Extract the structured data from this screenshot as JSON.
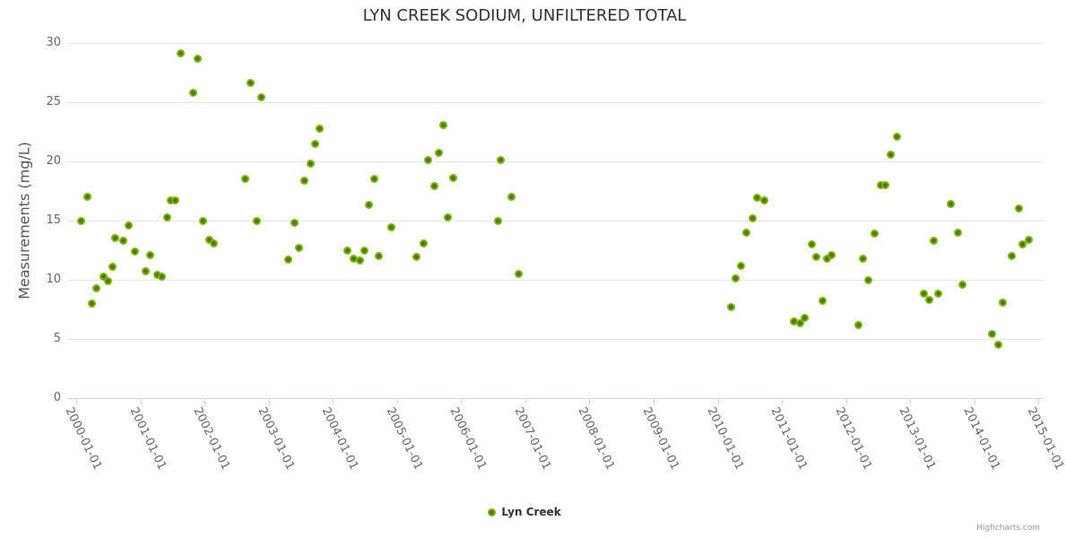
{
  "credits": "Highcharts.com",
  "legend": {
    "label": "Lyn Creek"
  },
  "colors": {
    "point_core": "#4a7a05",
    "point_ring": "#7cb500",
    "gridline": "#e6e6e6",
    "axis_line": "#ccd6eb",
    "title_text": "#333333",
    "axis_labels": "#666666",
    "credits_text": "#999999"
  },
  "chart_data": {
    "type": "scatter",
    "title": "LYN CREEK SODIUM, UNFILTERED TOTAL",
    "xlabel": "",
    "ylabel": "Measurements (mg/L)",
    "ylim": [
      0,
      30
    ],
    "xlim": [
      1999.85,
      2015.1
    ],
    "grid": "horizontal-only",
    "legend_position": "bottom-center",
    "y_ticks": [
      0,
      5,
      10,
      15,
      20,
      25,
      30
    ],
    "x_tick_labels": [
      "2000-01-01",
      "2001-01-01",
      "2002-01-01",
      "2003-01-01",
      "2004-01-01",
      "2005-01-01",
      "2006-01-01",
      "2007-01-01",
      "2008-01-01",
      "2009-01-01",
      "2010-01-01",
      "2011-01-01",
      "2012-01-01",
      "2013-01-01",
      "2014-01-01",
      "2015-01-01"
    ],
    "series": [
      {
        "name": "Lyn Creek",
        "data": [
          [
            2000.08,
            15.0
          ],
          [
            2000.17,
            17.0
          ],
          [
            2000.25,
            8.0
          ],
          [
            2000.31,
            9.3
          ],
          [
            2000.43,
            10.3
          ],
          [
            2000.5,
            9.9
          ],
          [
            2000.56,
            11.1
          ],
          [
            2000.61,
            13.5
          ],
          [
            2000.74,
            13.3
          ],
          [
            2000.82,
            14.6
          ],
          [
            2000.91,
            12.4
          ],
          [
            2001.09,
            10.7
          ],
          [
            2001.16,
            12.1
          ],
          [
            2001.26,
            10.4
          ],
          [
            2001.34,
            10.3
          ],
          [
            2001.42,
            15.3
          ],
          [
            2001.48,
            16.7
          ],
          [
            2001.55,
            16.7
          ],
          [
            2001.63,
            29.1
          ],
          [
            2001.83,
            25.8
          ],
          [
            2001.89,
            28.7
          ],
          [
            2001.98,
            15.0
          ],
          [
            2002.07,
            13.4
          ],
          [
            2002.15,
            13.1
          ],
          [
            2002.63,
            18.5
          ],
          [
            2002.72,
            26.6
          ],
          [
            2002.82,
            15.0
          ],
          [
            2002.89,
            25.4
          ],
          [
            2003.3,
            11.7
          ],
          [
            2003.4,
            14.8
          ],
          [
            2003.47,
            12.7
          ],
          [
            2003.56,
            18.4
          ],
          [
            2003.66,
            19.8
          ],
          [
            2003.72,
            21.5
          ],
          [
            2003.8,
            22.8
          ],
          [
            2004.23,
            12.5
          ],
          [
            2004.33,
            11.8
          ],
          [
            2004.42,
            11.6
          ],
          [
            2004.49,
            12.5
          ],
          [
            2004.57,
            16.3
          ],
          [
            2004.65,
            18.5
          ],
          [
            2004.72,
            12.0
          ],
          [
            2004.91,
            14.4
          ],
          [
            2005.3,
            11.9
          ],
          [
            2005.41,
            13.1
          ],
          [
            2005.48,
            20.1
          ],
          [
            2005.58,
            17.9
          ],
          [
            2005.65,
            20.7
          ],
          [
            2005.73,
            23.1
          ],
          [
            2005.8,
            15.3
          ],
          [
            2005.88,
            18.6
          ],
          [
            2006.57,
            15.0
          ],
          [
            2006.62,
            20.1
          ],
          [
            2006.79,
            17.0
          ],
          [
            2006.9,
            10.5
          ],
          [
            2010.21,
            7.7
          ],
          [
            2010.28,
            10.1
          ],
          [
            2010.36,
            11.2
          ],
          [
            2010.45,
            14.0
          ],
          [
            2010.54,
            15.2
          ],
          [
            2010.62,
            16.9
          ],
          [
            2010.72,
            16.7
          ],
          [
            2011.19,
            6.5
          ],
          [
            2011.28,
            6.3
          ],
          [
            2011.36,
            6.8
          ],
          [
            2011.47,
            13.0
          ],
          [
            2011.54,
            11.9
          ],
          [
            2011.63,
            8.2
          ],
          [
            2011.7,
            11.8
          ],
          [
            2011.77,
            12.1
          ],
          [
            2012.2,
            6.2
          ],
          [
            2012.27,
            11.8
          ],
          [
            2012.35,
            10.0
          ],
          [
            2012.45,
            13.9
          ],
          [
            2012.54,
            18.0
          ],
          [
            2012.62,
            18.0
          ],
          [
            2012.7,
            20.6
          ],
          [
            2012.79,
            22.1
          ],
          [
            2013.22,
            8.8
          ],
          [
            2013.3,
            8.3
          ],
          [
            2013.37,
            13.3
          ],
          [
            2013.44,
            8.8
          ],
          [
            2013.64,
            16.4
          ],
          [
            2013.74,
            14.0
          ],
          [
            2013.81,
            9.6
          ],
          [
            2014.27,
            5.4
          ],
          [
            2014.38,
            4.5
          ],
          [
            2014.45,
            8.1
          ],
          [
            2014.59,
            12.0
          ],
          [
            2014.7,
            16.0
          ],
          [
            2014.75,
            13.0
          ],
          [
            2014.85,
            13.4
          ]
        ]
      }
    ]
  }
}
